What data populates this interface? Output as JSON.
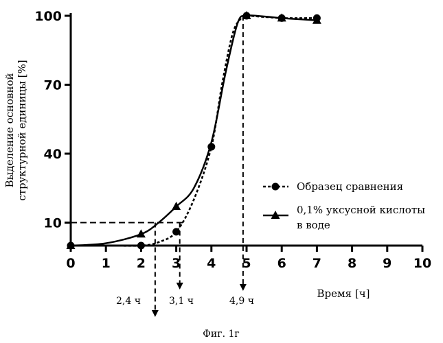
{
  "chart_data": {
    "type": "line",
    "xlabel": "Время [ч]",
    "ylabel_lines": [
      "Выделение основной",
      "структурной единицы [%]"
    ],
    "xlim": [
      0,
      10
    ],
    "ylim": [
      0,
      100
    ],
    "x_ticks": [
      0,
      1,
      2,
      3,
      4,
      5,
      6,
      7,
      8,
      9,
      10
    ],
    "y_ticks": [
      10,
      40,
      70,
      100
    ],
    "grid": false,
    "legend_position": "right",
    "series": [
      {
        "name": "Образец сравнения",
        "style": "dotted",
        "marker": "circle",
        "x": [
          0,
          2,
          3,
          4,
          5,
          6,
          7
        ],
        "y": [
          0,
          0,
          6,
          43,
          100,
          99,
          99
        ],
        "curve": [
          [
            0,
            0
          ],
          [
            1,
            0
          ],
          [
            2,
            0
          ],
          [
            2.5,
            1.5
          ],
          [
            3,
            6
          ],
          [
            3.5,
            20
          ],
          [
            4,
            43
          ],
          [
            4.3,
            70
          ],
          [
            4.6,
            92
          ],
          [
            4.85,
            99
          ],
          [
            5,
            100
          ],
          [
            5.5,
            99.5
          ],
          [
            6,
            99
          ],
          [
            6.5,
            99
          ],
          [
            7,
            99
          ]
        ]
      },
      {
        "name_lines": [
          "0,1% уксусной кислоты",
          "в воде"
        ],
        "style": "solid",
        "marker": "triangle",
        "x": [
          0,
          2,
          3,
          5,
          6,
          7
        ],
        "y": [
          0,
          5,
          17,
          100,
          99,
          98
        ],
        "curve": [
          [
            0,
            0
          ],
          [
            1,
            1
          ],
          [
            2,
            5
          ],
          [
            2.5,
            10
          ],
          [
            3,
            17
          ],
          [
            3.5,
            25
          ],
          [
            4,
            45
          ],
          [
            4.4,
            75
          ],
          [
            4.75,
            97
          ],
          [
            5,
            100
          ],
          [
            5.5,
            99.7
          ],
          [
            6,
            99
          ],
          [
            6.5,
            98.5
          ],
          [
            7,
            98
          ]
        ]
      }
    ],
    "annotations": {
      "horizontal_line": {
        "y": 10,
        "x_from": 0,
        "x_to": 3.2
      },
      "drops": [
        {
          "x": 2.4,
          "label": "2,4 ч"
        },
        {
          "x": 3.1,
          "label": "3,1 ч"
        },
        {
          "x": 4.9,
          "label": "4,9 ч"
        }
      ]
    },
    "caption": "Фиг. 1г"
  }
}
